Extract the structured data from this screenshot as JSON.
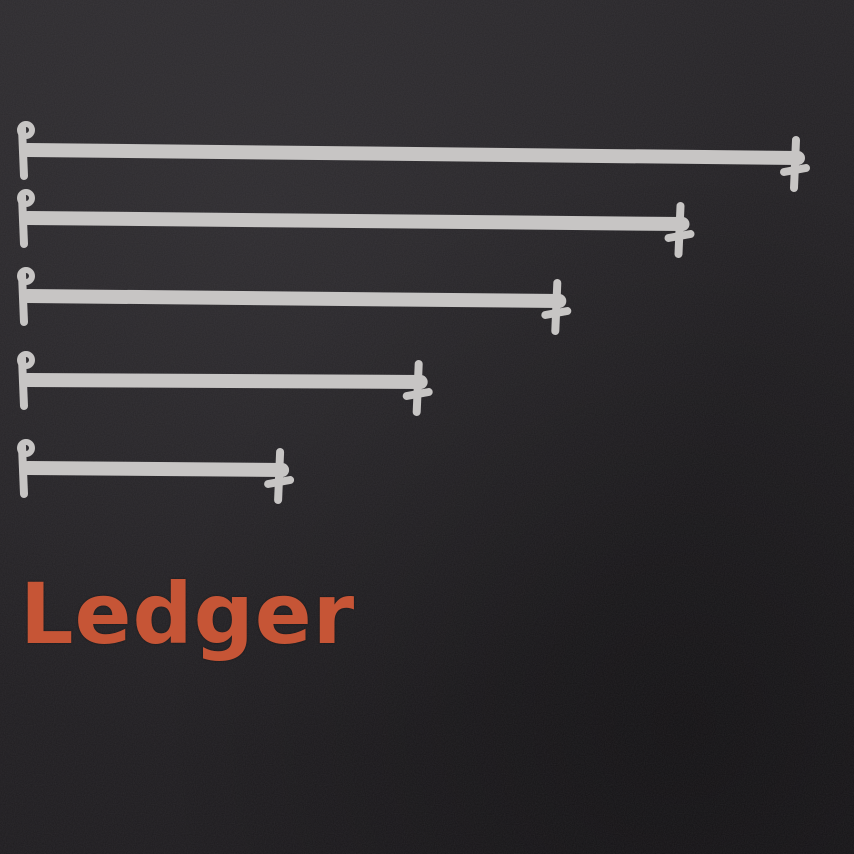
{
  "wordmark": {
    "text": "Ledger"
  },
  "colors": {
    "background": "#1f1d1f",
    "bar": "#c7c5c4",
    "wordmark": "#c65536"
  },
  "bars": [
    {
      "relative_length": 1.0
    },
    {
      "relative_length": 0.85
    },
    {
      "relative_length": 0.69
    },
    {
      "relative_length": 0.51
    },
    {
      "relative_length": 0.33
    }
  ]
}
